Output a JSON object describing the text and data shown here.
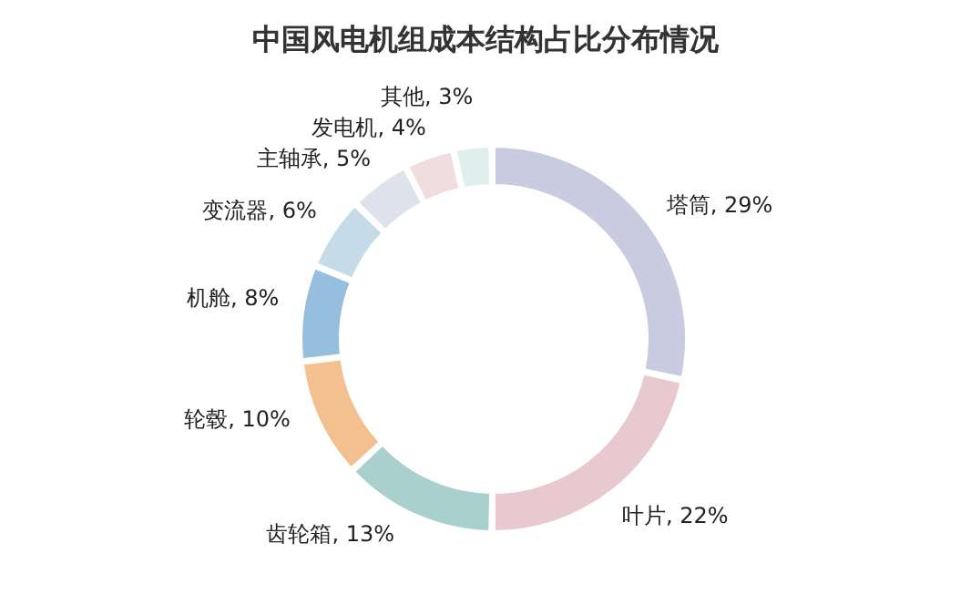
{
  "chart_data": {
    "type": "donut",
    "title": "中国风电机组成本结构占比分布情况",
    "categories": [
      "塔筒",
      "叶片",
      "齿轮箱",
      "轮毂",
      "机舱",
      "变流器",
      "主轴承",
      "发电机",
      "其他"
    ],
    "values": [
      29,
      22,
      13,
      10,
      8,
      6,
      5,
      4,
      3
    ],
    "value_labels": [
      "29%",
      "22%",
      "13%",
      "10%",
      "8%",
      "6%",
      "5%",
      "4%",
      "3%"
    ],
    "colors": [
      "#c9cbe0",
      "#e8c9cf",
      "#a9cfcf",
      "#f3c08f",
      "#96bedd",
      "#c5dce8",
      "#dde2ec",
      "#f0dde0",
      "#e0eeee"
    ],
    "legend": false
  }
}
